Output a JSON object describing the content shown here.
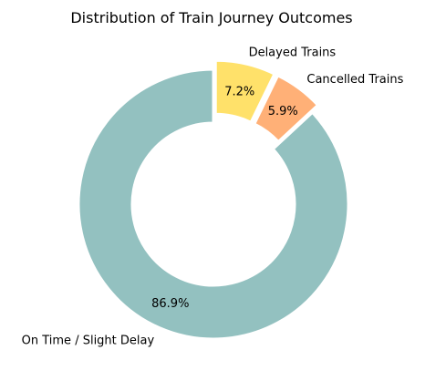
{
  "chart_data": {
    "type": "pie",
    "title": "Distribution of Train Journey Outcomes",
    "donut": true,
    "slices": [
      {
        "label": "On Time / Slight Delay",
        "value": 86.9,
        "pct_label": "86.9%",
        "color": "#93c1c0",
        "exploded": false
      },
      {
        "label": "Cancelled Trains",
        "value": 5.9,
        "pct_label": "5.9%",
        "color": "#ffb077",
        "exploded": true
      },
      {
        "label": "Delayed Trains",
        "value": 7.2,
        "pct_label": "7.2%",
        "color": "#ffe16a",
        "exploded": true
      }
    ],
    "start_angle_deg": 90,
    "direction": "counterclockwise",
    "legend": "none"
  }
}
